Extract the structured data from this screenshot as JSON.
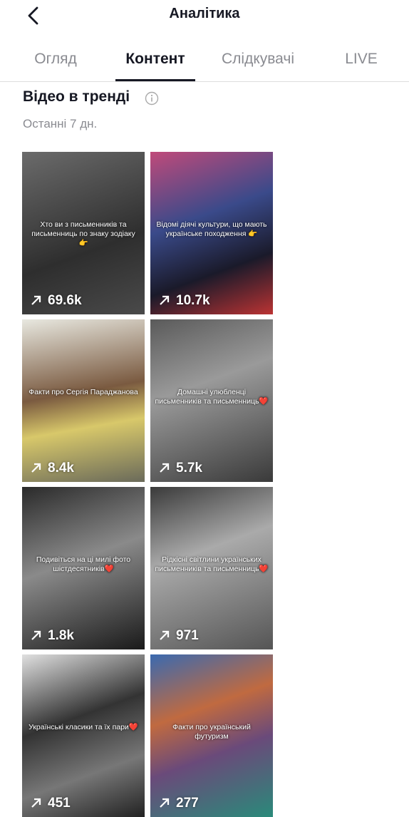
{
  "header": {
    "title": "Аналітика"
  },
  "tabs": [
    "Огляд",
    "Контент",
    "Слідкувачі",
    "LIVE"
  ],
  "section": {
    "title": "Відео в тренді",
    "subtitle": "Останні 7 дн."
  },
  "videos": [
    {
      "caption": "Хто ви з письменників та письменниць по знаку зодіаку 👉",
      "views": "69.6k"
    },
    {
      "caption": "Відомі діячі культури, що мають українське походження 👉",
      "views": "10.7k"
    },
    {
      "caption": "Факти про Сергія Параджанова",
      "views": "8.4k"
    },
    {
      "caption": "Домашні улюбленці письменників та письменниць❤️",
      "views": "5.7k"
    },
    {
      "caption": "Подивіться на ці милі фото шістдесятників❤️",
      "views": "1.8k"
    },
    {
      "caption": "Рідкісні світлини українських письменників та письменниць❤️",
      "views": "971"
    },
    {
      "caption": "Українські класики та їх пари❤️",
      "views": "451"
    },
    {
      "caption": "Факти про український футуризм",
      "views": "277"
    }
  ]
}
